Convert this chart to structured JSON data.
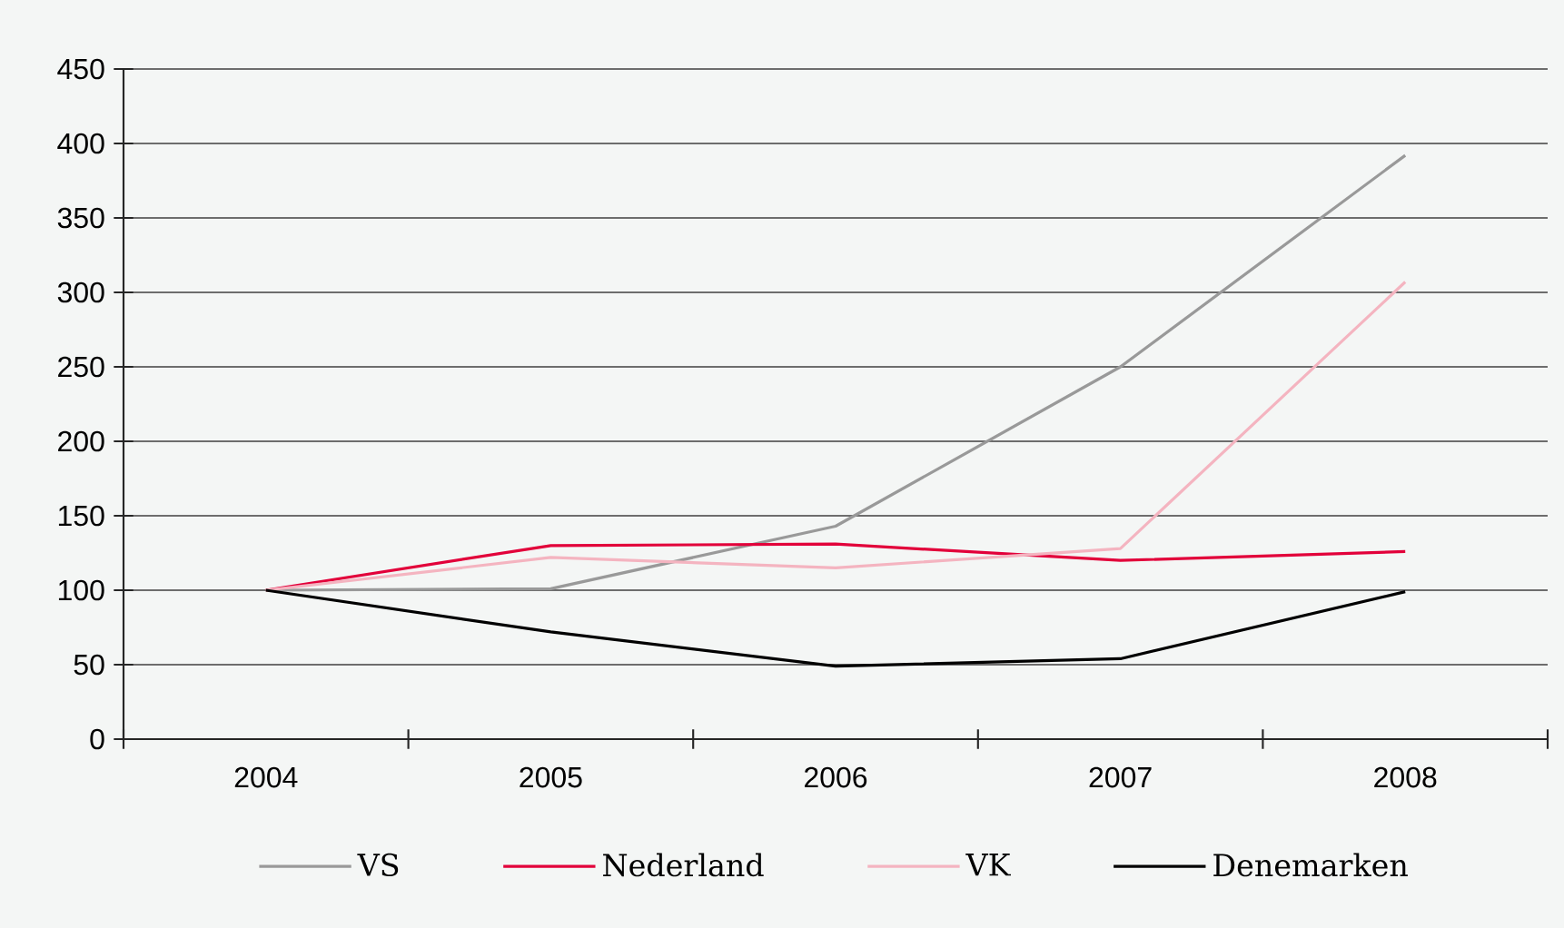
{
  "chart_data": {
    "type": "line",
    "categories": [
      "2004",
      "2005",
      "2006",
      "2007",
      "2008"
    ],
    "series": [
      {
        "name": "VS",
        "color": "#999999",
        "values": [
          100,
          101,
          143,
          250,
          392
        ]
      },
      {
        "name": "Nederland",
        "color": "#e2003a",
        "values": [
          100,
          130,
          131,
          120,
          126
        ]
      },
      {
        "name": "VK",
        "color": "#f4b4c0",
        "values": [
          100,
          122,
          115,
          128,
          307
        ]
      },
      {
        "name": "Denemarken",
        "color": "#000000",
        "values": [
          100,
          72,
          49,
          54,
          99
        ]
      }
    ],
    "ylim": [
      0,
      450
    ],
    "yticks": [
      0,
      50,
      100,
      150,
      200,
      250,
      300,
      350,
      400,
      450
    ],
    "grid": "y",
    "legend": "bottom",
    "marker": "none",
    "line_style": "solid"
  }
}
